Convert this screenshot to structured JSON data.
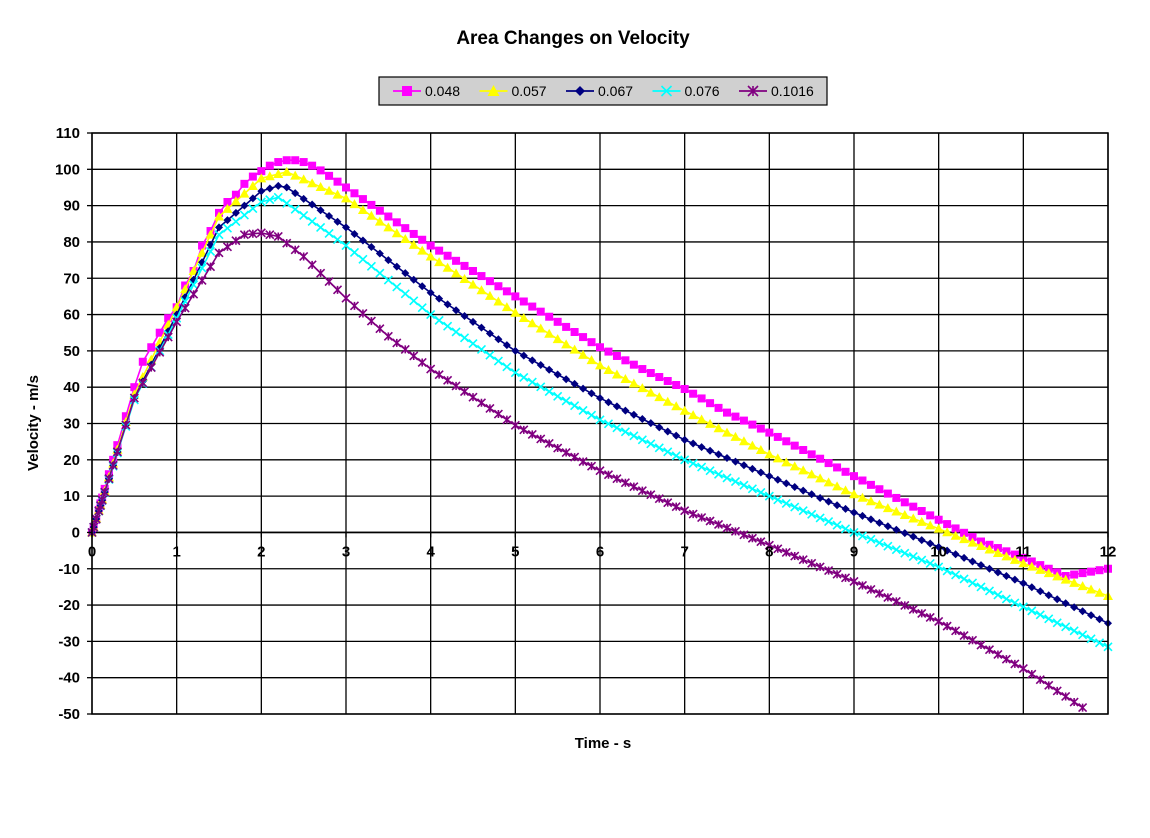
{
  "chart_data": {
    "type": "line",
    "title": "Area Changes on Velocity",
    "xlabel": "Time - s",
    "ylabel": "Velocity - m/s",
    "xlim": [
      0,
      12
    ],
    "ylim": [
      -50,
      110
    ],
    "xticks": [
      0,
      1,
      2,
      3,
      4,
      5,
      6,
      7,
      8,
      9,
      10,
      11,
      12
    ],
    "yticks": [
      -50,
      -40,
      -30,
      -20,
      -10,
      0,
      10,
      20,
      30,
      40,
      50,
      60,
      70,
      80,
      90,
      100,
      110
    ],
    "grid": true,
    "legend_position": "top",
    "series": [
      {
        "name": "0.048",
        "color": "#FF00FF",
        "marker": "square",
        "peak": [
          2.35,
          102.5
        ],
        "x": [
          0,
          0.05,
          0.1,
          0.15,
          0.2,
          0.25,
          0.3,
          0.35,
          0.4,
          0.45,
          0.5,
          0.55,
          0.6,
          0.8,
          0.9,
          1.0,
          1.1,
          1.2,
          1.3,
          1.4,
          1.5,
          1.6,
          1.7,
          1.8,
          1.9,
          2.0,
          2.1,
          2.2,
          2.3,
          2.4,
          2.5,
          2.6,
          2.7,
          2.8,
          2.9,
          3.0,
          3.5,
          4.0,
          4.5,
          5.0,
          5.5,
          6.0,
          6.5,
          7.0,
          7.5,
          8.0,
          8.5,
          9.0,
          9.5,
          10.0,
          10.5,
          11.0,
          11.5,
          12.0
        ],
        "y": [
          0,
          3.5,
          8,
          12,
          16,
          20,
          24,
          28,
          32,
          36,
          40,
          44,
          47,
          55,
          59,
          62,
          68,
          72,
          79,
          83,
          88,
          91,
          93,
          96,
          98,
          99.5,
          101,
          102,
          102.5,
          102.5,
          102,
          101,
          99.7,
          98.2,
          96.6,
          95,
          87,
          79,
          72,
          65,
          58,
          51,
          45,
          39.5,
          33,
          27.5,
          21.5,
          15.5,
          9.5,
          3.5,
          -2.5,
          -7,
          -12,
          -10
        ]
      },
      {
        "name": "0.057",
        "color": "#FFFF00",
        "marker": "triangle",
        "peak": [
          2.3,
          99.3
        ],
        "x": [
          0,
          0.5,
          1.0,
          1.5,
          2.0,
          2.3,
          3.0,
          4.0,
          5.0,
          6.0,
          7.0,
          8.0,
          9.0,
          10.0,
          11.0,
          12.0
        ],
        "y": [
          0,
          38,
          62,
          87,
          97.5,
          99.3,
          92,
          76,
          60.5,
          46,
          33.5,
          21.5,
          10.5,
          1,
          -8.5,
          -17.5
        ]
      },
      {
        "name": "0.067",
        "color": "#000080",
        "marker": "diamond",
        "peak": [
          2.25,
          95.8
        ],
        "x": [
          0,
          0.5,
          1.0,
          1.5,
          2.0,
          2.25,
          3.0,
          4.0,
          5.0,
          6.0,
          7.0,
          8.0,
          9.0,
          10.0,
          11.0,
          12.0
        ],
        "y": [
          0,
          37,
          60,
          84,
          94,
          95.8,
          84,
          66,
          50,
          37,
          25.5,
          15.5,
          5.5,
          -4,
          -14,
          -25
        ]
      },
      {
        "name": "0.076",
        "color": "#00FFFF",
        "marker": "x",
        "peak": [
          2.2,
          92.3
        ],
        "x": [
          0,
          0.5,
          1.0,
          1.5,
          2.0,
          2.2,
          3.0,
          4.0,
          5.0,
          6.0,
          7.0,
          8.0,
          9.0,
          10.0,
          11.0,
          12.0
        ],
        "y": [
          0,
          36.5,
          59,
          82,
          91,
          92.3,
          79,
          60,
          44,
          31,
          20,
          10,
          0,
          -9.5,
          -20.5,
          -31.5
        ]
      },
      {
        "name": "0.1016",
        "color": "#800080",
        "marker": "star",
        "peak": [
          2.0,
          82.5
        ],
        "x": [
          0,
          0.5,
          1.0,
          1.5,
          1.8,
          2.0,
          2.2,
          2.5,
          3.0,
          3.5,
          4.0,
          5.0,
          6.0,
          7.0,
          8.0,
          9.0,
          10.0,
          11.0,
          11.75
        ],
        "y": [
          0,
          37,
          58,
          77,
          82,
          82.5,
          81.5,
          76,
          64.5,
          54,
          45,
          29.5,
          17,
          6,
          -3.5,
          -13.5,
          -24.5,
          -37.5,
          -49
        ]
      }
    ]
  }
}
